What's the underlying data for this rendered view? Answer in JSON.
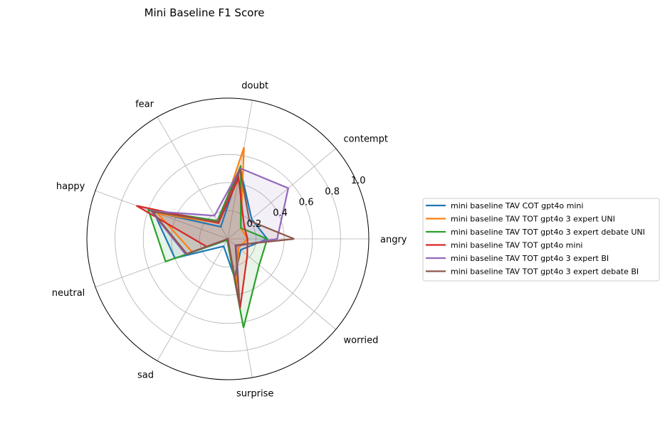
{
  "chart_data": {
    "type": "radar",
    "title": "Mini Baseline F1 Score",
    "categories": [
      "angry",
      "contempt",
      "doubt",
      "fear",
      "happy",
      "neutral",
      "sad",
      "surprise",
      "worried"
    ],
    "rlim": [
      0,
      1.0
    ],
    "rticks": [
      0.2,
      0.4,
      0.6,
      0.8,
      1.0
    ],
    "rtick_labels": [
      "0.2",
      "0.4",
      "0.6",
      "0.8",
      "1.0"
    ],
    "grid": true,
    "legend_position": "right",
    "series": [
      {
        "name": "mini baseline TAV COT gpt4o mini",
        "color": "#1f77b4",
        "values": [
          0.28,
          0.22,
          0.51,
          0.1,
          0.56,
          0.4,
          0.06,
          0.28,
          0.12
        ]
      },
      {
        "name": "mini baseline TAV TOT gpt4o 3 expert UNI",
        "color": "#ff7f0e",
        "values": [
          0.14,
          0.12,
          0.66,
          0.13,
          0.53,
          0.27,
          0.0,
          0.34,
          0.1
        ]
      },
      {
        "name": "mini baseline TAV TOT gpt4o 3 expert debate UNI",
        "color": "#2ca02c",
        "values": [
          0.28,
          0.12,
          0.53,
          0.15,
          0.6,
          0.47,
          0.01,
          0.64,
          0.29
        ]
      },
      {
        "name": "mini baseline TAV TOT gpt4o mini",
        "color": "#d62728",
        "values": [
          0.14,
          0.15,
          0.44,
          0.13,
          0.69,
          0.16,
          0.0,
          0.5,
          0.18
        ]
      },
      {
        "name": "mini baseline TAV TOT gpt4o 3 expert BI",
        "color": "#9467bd",
        "values": [
          0.35,
          0.56,
          0.51,
          0.19,
          0.58,
          0.32,
          0.0,
          0.48,
          0.08
        ]
      },
      {
        "name": "mini baseline TAV TOT gpt4o 3 expert debate BI",
        "color": "#8c564b",
        "values": [
          0.47,
          0.2,
          0.5,
          0.14,
          0.57,
          0.31,
          0.0,
          0.49,
          0.07
        ]
      }
    ]
  }
}
